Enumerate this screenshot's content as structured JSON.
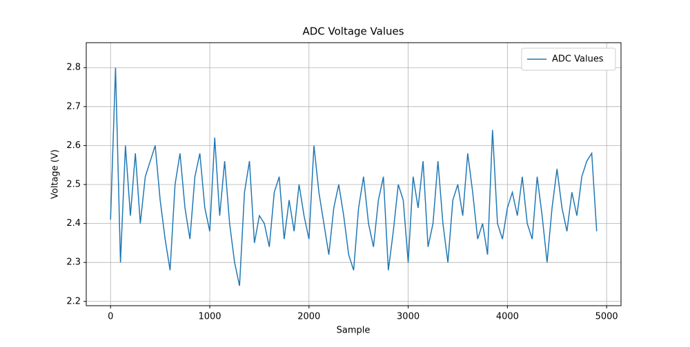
{
  "chart_data": {
    "type": "line",
    "title": "ADC Voltage Values",
    "x_label": "Sample",
    "y_label": "Voltage (V)",
    "x": [
      0,
      50,
      100,
      150,
      200,
      250,
      300,
      350,
      400,
      450,
      500,
      550,
      600,
      650,
      700,
      750,
      800,
      850,
      900,
      950,
      1000,
      1050,
      1100,
      1150,
      1200,
      1250,
      1300,
      1350,
      1400,
      1450,
      1500,
      1550,
      1600,
      1650,
      1700,
      1750,
      1800,
      1850,
      1900,
      1950,
      2000,
      2050,
      2100,
      2150,
      2200,
      2250,
      2300,
      2350,
      2400,
      2450,
      2500,
      2550,
      2600,
      2650,
      2700,
      2750,
      2800,
      2850,
      2900,
      2950,
      3000,
      3050,
      3100,
      3150,
      3200,
      3250,
      3300,
      3350,
      3400,
      3450,
      3500,
      3550,
      3600,
      3650,
      3700,
      3750,
      3800,
      3850,
      3900,
      3950,
      4000,
      4050,
      4100,
      4150,
      4200,
      4250,
      4300,
      4350,
      4400,
      4450,
      4500,
      4550,
      4600,
      4650,
      4700,
      4750,
      4800,
      4850,
      4900
    ],
    "series": [
      {
        "name": "ADC Values",
        "color": "#1f77b4",
        "values": [
          2.41,
          2.8,
          2.3,
          2.6,
          2.42,
          2.58,
          2.4,
          2.52,
          2.56,
          2.6,
          2.46,
          2.36,
          2.28,
          2.5,
          2.58,
          2.44,
          2.36,
          2.52,
          2.58,
          2.44,
          2.38,
          2.62,
          2.42,
          2.56,
          2.4,
          2.3,
          2.24,
          2.48,
          2.56,
          2.35,
          2.42,
          2.4,
          2.34,
          2.48,
          2.52,
          2.36,
          2.46,
          2.38,
          2.5,
          2.42,
          2.36,
          2.6,
          2.48,
          2.4,
          2.32,
          2.44,
          2.5,
          2.42,
          2.32,
          2.28,
          2.44,
          2.52,
          2.4,
          2.34,
          2.46,
          2.52,
          2.28,
          2.38,
          2.5,
          2.46,
          2.3,
          2.52,
          2.44,
          2.56,
          2.34,
          2.4,
          2.56,
          2.4,
          2.3,
          2.46,
          2.5,
          2.42,
          2.58,
          2.48,
          2.36,
          2.4,
          2.32,
          2.64,
          2.4,
          2.36,
          2.44,
          2.48,
          2.42,
          2.52,
          2.4,
          2.36,
          2.52,
          2.42,
          2.3,
          2.44,
          2.54,
          2.44,
          2.38,
          2.48,
          2.42,
          2.52,
          2.56,
          2.58,
          2.38
        ]
      }
    ],
    "xlim": [
      -245,
      5145
    ],
    "ylim": [
      2.189,
      2.864
    ],
    "xticks": [
      0,
      1000,
      2000,
      3000,
      4000,
      5000
    ],
    "yticks": [
      2.2,
      2.3,
      2.4,
      2.5,
      2.6,
      2.7,
      2.8
    ],
    "grid": true,
    "legend": "upper right"
  }
}
